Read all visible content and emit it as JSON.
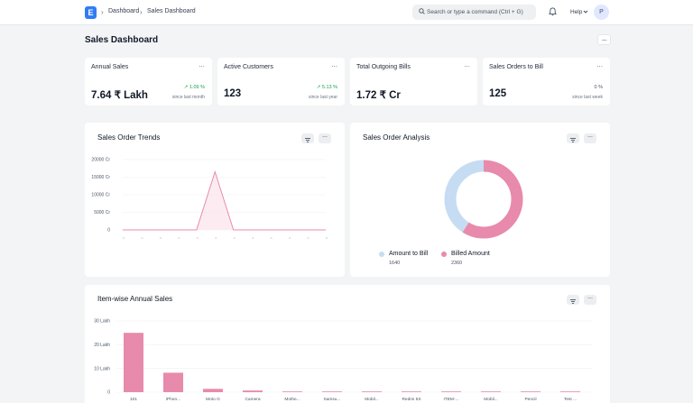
{
  "navbar": {
    "logo_letter": "E",
    "breadcrumbs": [
      "Dashboard",
      "Sales Dashboard"
    ],
    "search_placeholder": "Search or type a command (Ctrl + G)",
    "help_label": "Help",
    "avatar_initial": "P"
  },
  "page": {
    "title": "Sales Dashboard"
  },
  "cards": [
    {
      "title": "Annual Sales",
      "value": "7.64 ₹ Lakh",
      "delta": "1.09 %",
      "delta_dir": "up",
      "since": "since last month"
    },
    {
      "title": "Active Customers",
      "value": "123",
      "delta": "5.13 %",
      "delta_dir": "up",
      "since": "since last year"
    },
    {
      "title": "Total Outgoing Bills",
      "value": "1.72 ₹ Cr",
      "delta": "",
      "delta_dir": "",
      "since": ""
    },
    {
      "title": "Sales Orders to Bill",
      "value": "125",
      "delta": "0 %",
      "delta_dir": "neutral",
      "since": "since last week"
    }
  ],
  "colors": {
    "accent": "#2f7cf6",
    "pink": "#e88aab",
    "light_blue": "#c6dcf3",
    "positive": "#16a34a"
  },
  "chart_data": [
    {
      "type": "line",
      "title": "Sales Order Trends",
      "y_ticks": [
        "20000 Cr",
        "15000 Cr",
        "10000 Cr",
        "5000 Cr",
        "0"
      ],
      "ylim": [
        0,
        20000
      ],
      "x_count": 12,
      "values": [
        0,
        0,
        0,
        0,
        0,
        16500,
        0,
        0,
        0,
        0,
        0,
        0
      ],
      "grid": true
    },
    {
      "type": "pie",
      "title": "Sales Order Analysis",
      "labels": [
        "Amount to Bill",
        "Billed Amount"
      ],
      "values": [
        1640,
        2360
      ],
      "colors": [
        "#c6dcf3",
        "#e88aab"
      ],
      "legend": "bottom"
    },
    {
      "type": "bar",
      "title": "Item-wise Annual Sales",
      "y_ticks": [
        "30 Lakh",
        "20 Lakh",
        "10 Lakh",
        "0"
      ],
      "ylim": [
        0,
        30
      ],
      "categories": [
        "101",
        "iPhon...",
        "Moto G",
        "Camera",
        "Mothe...",
        "Samsu...",
        "Mobil...",
        "Redmi 5S",
        "ITEM-...",
        "Mobil...",
        "Pencil",
        "Test ..."
      ],
      "values": [
        25,
        8.2,
        1.4,
        0.7,
        0.3,
        0.2,
        0.15,
        0.1,
        0.05,
        0.05,
        0.02,
        0.02
      ],
      "grid": true
    }
  ]
}
